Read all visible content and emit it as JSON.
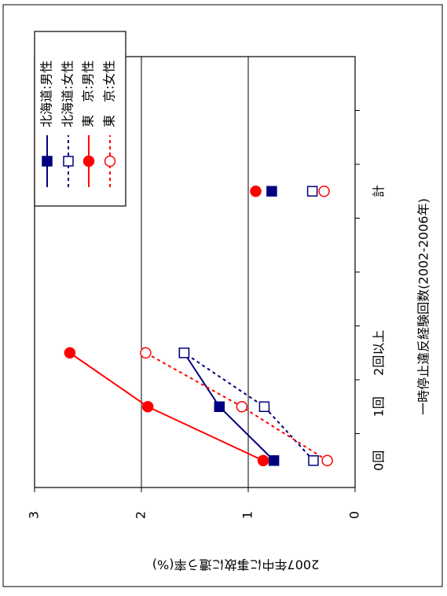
{
  "chart_data": {
    "type": "line",
    "x_label": "一時停止違反経験回数(2002-2006年)",
    "y_label": "2007年中に事故に遭う率(%)",
    "categories": [
      "0回",
      "1回",
      "2回以上",
      null,
      null,
      "計",
      null,
      null
    ],
    "ylim": [
      0,
      3
    ],
    "yticks": [
      0,
      1,
      2,
      3
    ],
    "grid": true,
    "legend": "upper right",
    "series": [
      {
        "name": "北海道:男性",
        "color": "#000080",
        "marker": "square",
        "filled": true,
        "dashed": false,
        "values": [
          0.76,
          1.27,
          1.6,
          null,
          null,
          0.78,
          null,
          null
        ]
      },
      {
        "name": "北海道:女性",
        "color": "#000080",
        "marker": "square",
        "filled": false,
        "dashed": true,
        "values": [
          0.39,
          0.85,
          1.6,
          null,
          null,
          0.4,
          null,
          null
        ]
      },
      {
        "name": "東　京:男性",
        "color": "#ff0000",
        "marker": "circle",
        "filled": true,
        "dashed": false,
        "values": [
          0.86,
          1.94,
          2.67,
          null,
          null,
          0.93,
          null,
          null
        ]
      },
      {
        "name": "東　京:女性",
        "color": "#ff0000",
        "marker": "circle",
        "filled": false,
        "dashed": true,
        "values": [
          0.26,
          1.06,
          1.96,
          null,
          null,
          0.29,
          null,
          null
        ]
      }
    ]
  }
}
